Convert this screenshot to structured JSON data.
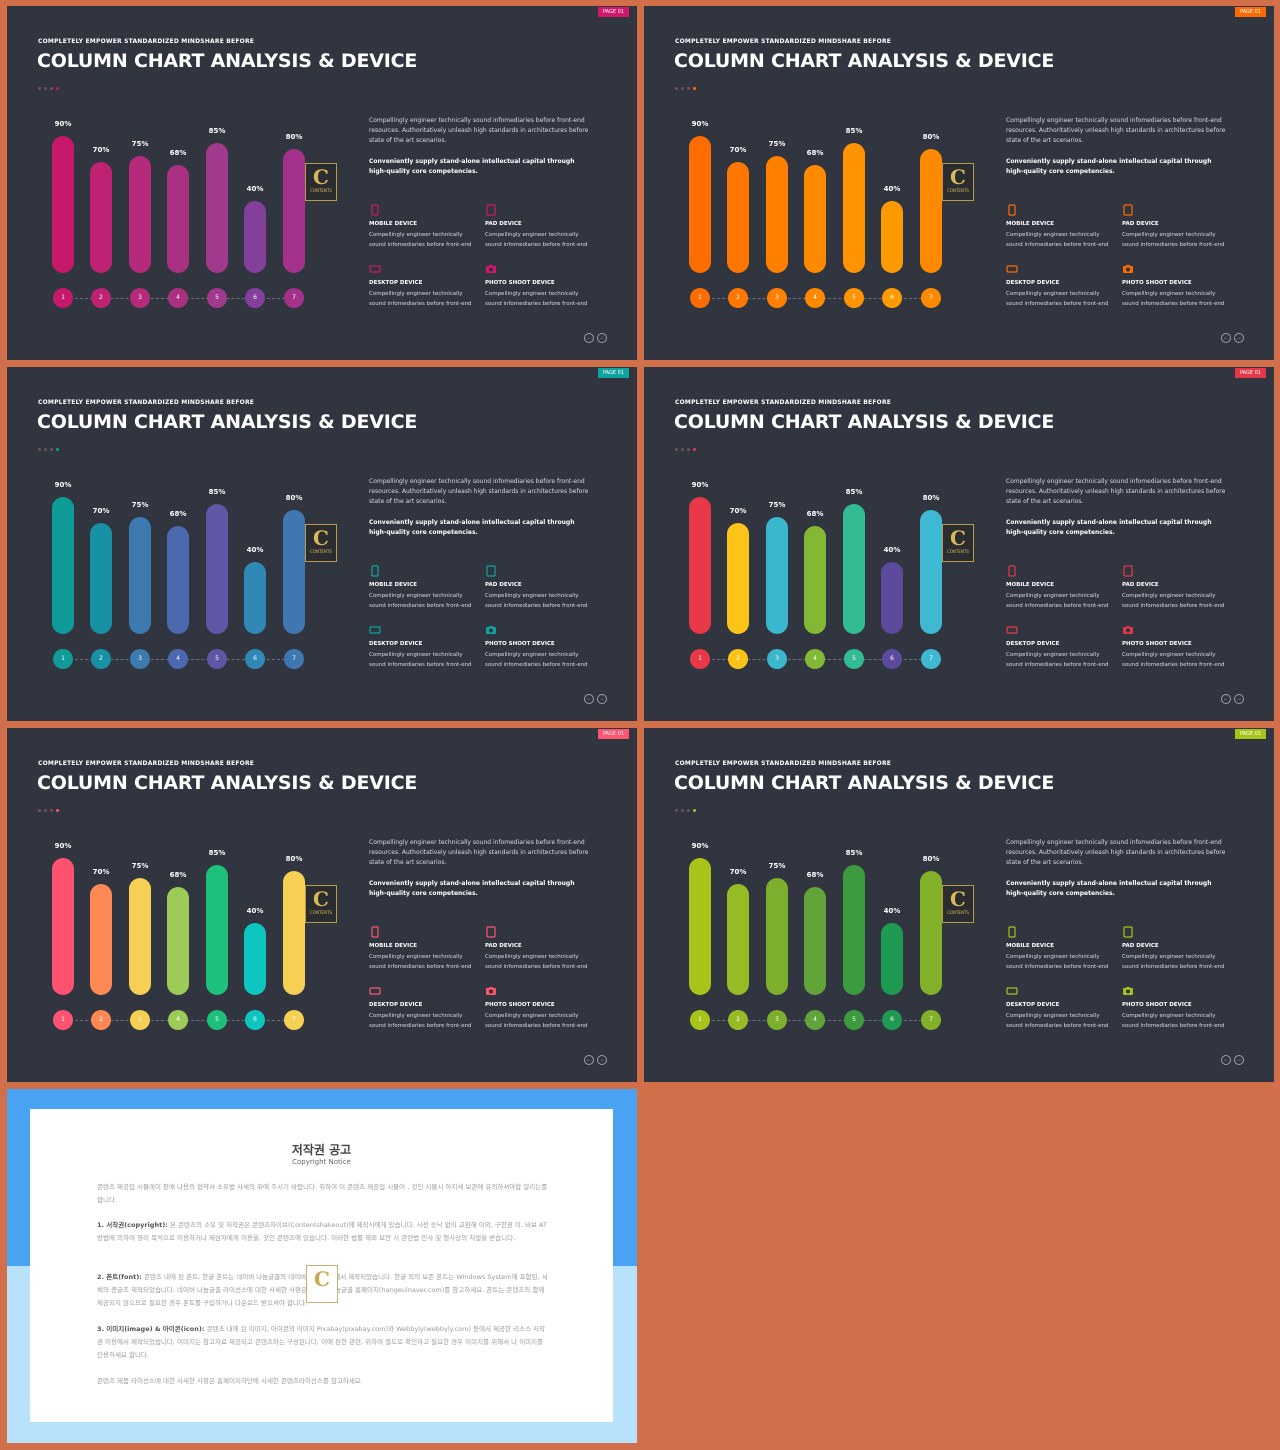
{
  "slides": [
    {
      "tag": "PAGE 01",
      "accent": "#d4156c",
      "colors": [
        "#c7196c",
        "#c02273",
        "#b52a7a",
        "#aa3181",
        "#a13a8c",
        "#833f9a",
        "#a4328a"
      ]
    },
    {
      "tag": "PAGE 01",
      "accent": "#ff6a00",
      "colors": [
        "#ff6d00",
        "#ff7700",
        "#ff8000",
        "#ff8a00",
        "#ff9300",
        "#ff9b00",
        "#ff8a00"
      ]
    },
    {
      "tag": "PAGE 01",
      "accent": "#0ea39e",
      "colors": [
        "#0f9b98",
        "#1791a3",
        "#3c7ab0",
        "#4c68ae",
        "#5d57a6",
        "#2f89b4",
        "#3f78b1"
      ]
    },
    {
      "tag": "PAGE 01",
      "accent": "#e6374a",
      "colors": [
        "#e8384a",
        "#fcc419",
        "#3ab6cd",
        "#82b833",
        "#33bb94",
        "#5c4a9c",
        "#3fb8d4"
      ]
    },
    {
      "tag": "PAGE 01",
      "accent": "#ff5470",
      "colors": [
        "#ff5271",
        "#ff8955",
        "#f5d054",
        "#9ccc57",
        "#1ec17b",
        "#0ec6c0",
        "#f5d054"
      ]
    },
    {
      "tag": "PAGE 01",
      "accent": "#a8c317",
      "colors": [
        "#aac318",
        "#97bb25",
        "#7eaf2c",
        "#62a43a",
        "#3b9b3e",
        "#1f9a52",
        "#82b029"
      ]
    }
  ],
  "common": {
    "kicker": "COMPLETELY  EMPOWER STANDARDIZED  MINDSHARE  BEFORE",
    "title": "COLUMN CHART ANALYSIS & DEVICE",
    "para1": "Compellingly engineer technically sound infomediaries before front-end resources. Authoritatively unleash high standards in architectures before state of the art scenarios.",
    "para2": "Conveniently supply stand-alone intellectual capital through high-quality core competencies.",
    "logo_letter": "C",
    "logo_text": "CONTENTS",
    "nav_prev": "←",
    "nav_next": "→",
    "devices": [
      {
        "title": "MOBILE DEVICE",
        "desc": "Compellingly engineer technically sound infomediaries before front-end",
        "icon": "mobile-icon"
      },
      {
        "title": "PAD DEVICE",
        "desc": "Compellingly engineer technically sound infomediaries before front-end",
        "icon": "tablet-icon"
      },
      {
        "title": "DESKTOP DEVICE",
        "desc": "Compellingly engineer technically sound infomediaries before front-end",
        "icon": "desktop-icon"
      },
      {
        "title": "PHOTO SHOOT DEVICE",
        "desc": "Compellingly engineer technically sound infomediaries before front-end",
        "icon": "camera-icon"
      }
    ]
  },
  "chart_data": {
    "type": "bar",
    "categories": [
      "1",
      "2",
      "3",
      "4",
      "5",
      "6",
      "7"
    ],
    "values": [
      90,
      70,
      75,
      68,
      85,
      40,
      80
    ],
    "labels": [
      "90%",
      "70%",
      "75%",
      "68%",
      "85%",
      "40%",
      "80%"
    ],
    "ylim": [
      0,
      100
    ]
  },
  "copyright": {
    "title": "저작권 공고",
    "subtitle": "Copyright Notice",
    "p1": "콘텐츠 제공업 시뮬레이 판매 나용의 협약서 소유법 사세의 위에 주시기 바랍니다. 위하여 이 콘텐츠 제공업 시뮬어 , 것인 시뮬시 하지세 보관에 유의하셔야합 알리는를 합니다.",
    "p2_head": "1. 서작권(copyright): ",
    "p2": "본 콘텐츠의 소유 및 저작권은 콘텐츠하이브(Contentshakeout)에 제작사에게 있습니다. 사전 승낙 없이 교환해 이외, 구한권 이, 비보 AT 방법에 의하여 영리 목적으로 이용하거나 제삼자에게 이용을, 것인 콘텐츠에 있습니다. 이러한 법률 해외 보안 시 관련법 민사 및 형사상의 처벌을 받습니다.",
    "p3_head": "2. 폰트(font): ",
    "p3": "콘텐츠 내에 된 폰트, 한글 폰트는 네이버 나눔글꼴의 네이버폰트 각 사에서 제작되었습니다. 한글 외의 보존 폰트는 Windows System에 포함된, 서체의 콩글조 제작되었습니다. 네이버 나눔글꼴 라이선스에 대한 사세한 사항은 네이버 나눔글꼴 홈페이지(hangeulnaver.com)를 참고하세요. 폰트는 콘텐츠의 함께 제공되지 않으므로 필요한 경우 폰트를 구입하거나 다운로드 받으셔야 합니다.",
    "p4_head": "3. 이미지(image) & 아이콘(icon): ",
    "p4": "콘텐츠 내에 된 이미지, 아이콘의 이미지 Pixabay(pixabay.com)와 Webbyly(webbyly.com) 등에서 제공한 리소스 저작권 이용에서 제작되었습니다. 이미지는 참고자료 제공되고 콘텐츠와는 구성된니다. 이에 판한 관련, 위하여 별도로 확인하고 필요한 경우 이미지를 위해서 나 이미지를 인용하세요 합니다.",
    "p5": "콘텐츠 제품 라이선스에 대한 사세한 사항은 홈페이지하단에 사세한 콘텐츠라이선스를 참고하세요."
  }
}
